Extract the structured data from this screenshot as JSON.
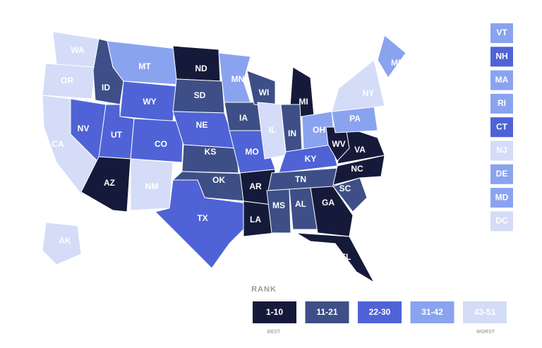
{
  "states": [
    {
      "label": "WA",
      "color": "#d4dcf7"
    },
    {
      "label": "OR",
      "color": "#d4dcf7"
    },
    {
      "label": "CA",
      "color": "#d4dcf7"
    },
    {
      "label": "NV",
      "color": "#4f63d6"
    },
    {
      "label": "ID",
      "color": "#3d4f86"
    },
    {
      "label": "MT",
      "color": "#8aa3ef"
    },
    {
      "label": "WY",
      "color": "#4f63d6"
    },
    {
      "label": "UT",
      "color": "#4f63d6"
    },
    {
      "label": "CO",
      "color": "#4f63d6"
    },
    {
      "label": "AZ",
      "color": "#161a3a"
    },
    {
      "label": "NM",
      "color": "#d4dcf7"
    },
    {
      "label": "ND",
      "color": "#161a3a"
    },
    {
      "label": "SD",
      "color": "#3d4f86"
    },
    {
      "label": "NE",
      "color": "#4f63d6"
    },
    {
      "label": "KS",
      "color": "#3d4f86"
    },
    {
      "label": "OK",
      "color": "#3d4f86"
    },
    {
      "label": "TX",
      "color": "#4f63d6"
    },
    {
      "label": "MN",
      "color": "#8aa3ef"
    },
    {
      "label": "IA",
      "color": "#3d4f86"
    },
    {
      "label": "MO",
      "color": "#4f63d6"
    },
    {
      "label": "AR",
      "color": "#161a3a"
    },
    {
      "label": "LA",
      "color": "#161a3a"
    },
    {
      "label": "WI",
      "color": "#3d4f86"
    },
    {
      "label": "IL",
      "color": "#d4dcf7"
    },
    {
      "label": "MI",
      "color": "#161a3a"
    },
    {
      "label": "IN",
      "color": "#3d4f86"
    },
    {
      "label": "OH",
      "color": "#8aa3ef"
    },
    {
      "label": "KY",
      "color": "#4f63d6"
    },
    {
      "label": "TN",
      "color": "#3d4f86"
    },
    {
      "label": "MS",
      "color": "#3d4f86"
    },
    {
      "label": "AL",
      "color": "#3d4f86"
    },
    {
      "label": "GA",
      "color": "#161a3a"
    },
    {
      "label": "FL",
      "color": "#161a3a"
    },
    {
      "label": "SC",
      "color": "#3d4f86"
    },
    {
      "label": "NC",
      "color": "#161a3a"
    },
    {
      "label": "VA",
      "color": "#161a3a"
    },
    {
      "label": "WV",
      "color": "#161a3a"
    },
    {
      "label": "PA",
      "color": "#8aa3ef"
    },
    {
      "label": "NY",
      "color": "#d4dcf7"
    },
    {
      "label": "ME",
      "color": "#8aa3ef"
    },
    {
      "label": "AK",
      "color": "#d4dcf7"
    }
  ],
  "small_states": [
    {
      "label": "VT",
      "color": "#8aa3ef"
    },
    {
      "label": "NH",
      "color": "#4f63d6"
    },
    {
      "label": "MA",
      "color": "#8aa3ef"
    },
    {
      "label": "RI",
      "color": "#8aa3ef"
    },
    {
      "label": "CT",
      "color": "#4f63d6"
    },
    {
      "label": "NJ",
      "color": "#d4dcf7"
    },
    {
      "label": "DE",
      "color": "#8aa3ef"
    },
    {
      "label": "MD",
      "color": "#8aa3ef"
    },
    {
      "label": "DC",
      "color": "#d4dcf7"
    }
  ],
  "legend": {
    "title": "RANK",
    "best": "BEST",
    "worst": "WORST",
    "buckets": [
      {
        "label": "1-10",
        "color": "#161a3a"
      },
      {
        "label": "11-21",
        "color": "#3d4f86"
      },
      {
        "label": "22-30",
        "color": "#4f63d6"
      },
      {
        "label": "31-42",
        "color": "#8aa3ef"
      },
      {
        "label": "43-51",
        "color": "#d4dcf7"
      }
    ]
  }
}
